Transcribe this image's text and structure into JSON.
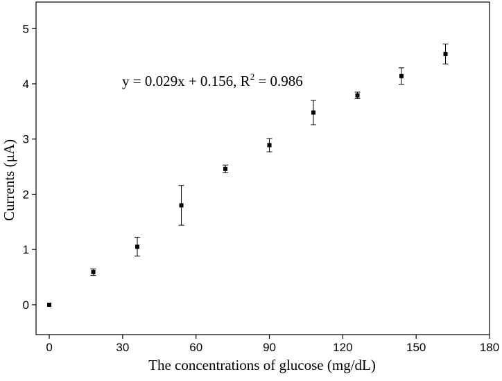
{
  "chart_data": {
    "type": "scatter",
    "x_label": "The concentrations of glucose (mg/dL)",
    "y_label": "Currents (μA)",
    "annotation": {
      "text": "y = 0.029x + 0.156, R",
      "superscript": "2",
      "after": " = 0.986"
    },
    "x": [
      0,
      18,
      36,
      54,
      72,
      90,
      108,
      126,
      144,
      162
    ],
    "values": [
      0,
      0.59,
      1.05,
      1.8,
      2.46,
      2.89,
      3.48,
      3.79,
      4.14,
      4.54
    ],
    "errors": [
      0,
      0.06,
      0.17,
      0.36,
      0.07,
      0.12,
      0.22,
      0.06,
      0.15,
      0.18
    ],
    "color": "#000000",
    "xlim": [
      -5.4,
      180
    ],
    "xticks": [
      0,
      30,
      60,
      90,
      120,
      150,
      180
    ],
    "ylim": [
      -0.54,
      5.48
    ],
    "yticks": [
      0,
      1,
      2,
      3,
      4,
      5
    ],
    "grid": false
  }
}
